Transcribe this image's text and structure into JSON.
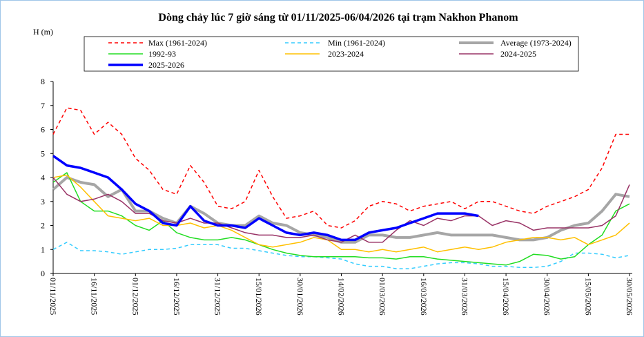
{
  "chart_data": {
    "type": "line",
    "title": "Dòng chảy lúc 7 giờ sáng từ 01/11/2025-06/04/2026 tại trạm Nakhon Phanom",
    "y_label": "H (m)",
    "ylim": [
      0,
      8
    ],
    "yticks": [
      0,
      1,
      2,
      3,
      4,
      5,
      6,
      7,
      8
    ],
    "xlim": [
      "01/11/2025",
      "31/05/2026"
    ],
    "xticks": [
      "01/11/2025",
      "16/11/2025",
      "01/12/2025",
      "16/12/2025",
      "31/12/2025",
      "15/01/2026",
      "30/01/2026",
      "14/02/2026",
      "01/03/2026",
      "16/03/2026",
      "31/03/2026",
      "15/04/2026",
      "30/04/2026",
      "15/05/2026",
      "30/05/2026"
    ],
    "grid": false,
    "x": [
      "01/11/2025",
      "06/11/2025",
      "11/11/2025",
      "16/11/2025",
      "21/11/2025",
      "26/11/2025",
      "01/12/2025",
      "06/12/2025",
      "11/12/2025",
      "16/12/2025",
      "21/12/2025",
      "26/12/2025",
      "31/12/2025",
      "05/01/2026",
      "10/01/2026",
      "15/01/2026",
      "20/01/2026",
      "25/01/2026",
      "30/01/2026",
      "04/02/2026",
      "09/02/2026",
      "14/02/2026",
      "19/02/2026",
      "24/02/2026",
      "01/03/2026",
      "06/03/2026",
      "11/03/2026",
      "16/03/2026",
      "21/03/2026",
      "26/03/2026",
      "31/03/2026",
      "05/04/2026",
      "10/04/2026",
      "15/04/2026",
      "20/04/2026",
      "25/04/2026",
      "30/04/2026",
      "05/05/2026",
      "10/05/2026",
      "15/05/2026",
      "20/05/2026",
      "25/05/2026",
      "30/05/2026"
    ],
    "series": [
      {
        "name": "Max (1961-2024)",
        "color": "#ff0000",
        "dash": true,
        "width": 1.5,
        "values": [
          5.8,
          6.9,
          6.8,
          5.8,
          6.3,
          5.8,
          4.8,
          4.3,
          3.5,
          3.3,
          4.5,
          3.8,
          2.8,
          2.7,
          3.0,
          4.3,
          3.2,
          2.3,
          2.4,
          2.6,
          2.0,
          1.9,
          2.2,
          2.8,
          3.0,
          2.9,
          2.6,
          2.8,
          2.9,
          3.0,
          2.7,
          3.0,
          3.0,
          2.8,
          2.6,
          2.5,
          2.8,
          3.0,
          3.2,
          3.5,
          4.4,
          5.8,
          5.8
        ]
      },
      {
        "name": "Min (1961-2024)",
        "color": "#33ccff",
        "dash": true,
        "width": 1.5,
        "values": [
          1.0,
          1.3,
          0.95,
          0.95,
          0.9,
          0.8,
          0.9,
          1.0,
          1.0,
          1.05,
          1.2,
          1.2,
          1.2,
          1.05,
          1.05,
          0.95,
          0.85,
          0.75,
          0.7,
          0.7,
          0.65,
          0.6,
          0.4,
          0.3,
          0.3,
          0.2,
          0.2,
          0.3,
          0.4,
          0.45,
          0.45,
          0.4,
          0.3,
          0.3,
          0.25,
          0.25,
          0.3,
          0.5,
          0.85,
          0.85,
          0.8,
          0.65,
          0.75
        ]
      },
      {
        "name": "Average (1973-2024)",
        "color": "#a6a6a6",
        "dash": false,
        "width": 4,
        "values": [
          3.5,
          4.0,
          3.8,
          3.7,
          3.2,
          3.5,
          2.6,
          2.6,
          2.3,
          2.1,
          2.8,
          2.5,
          2.1,
          2.0,
          2.0,
          2.4,
          2.1,
          2.0,
          1.7,
          1.6,
          1.5,
          1.3,
          1.3,
          1.6,
          1.6,
          1.5,
          1.5,
          1.6,
          1.7,
          1.6,
          1.6,
          1.6,
          1.6,
          1.5,
          1.4,
          1.4,
          1.5,
          1.8,
          2.0,
          2.1,
          2.6,
          3.3,
          3.2
        ]
      },
      {
        "name": "1992-93",
        "color": "#22dd22",
        "dash": false,
        "width": 1.5,
        "values": [
          3.8,
          4.2,
          3.0,
          2.6,
          2.6,
          2.4,
          2.0,
          1.8,
          2.2,
          1.7,
          1.5,
          1.4,
          1.4,
          1.5,
          1.4,
          1.2,
          1.0,
          0.85,
          0.75,
          0.7,
          0.7,
          0.7,
          0.7,
          0.65,
          0.65,
          0.6,
          0.7,
          0.7,
          0.6,
          0.55,
          0.5,
          0.45,
          0.4,
          0.35,
          0.5,
          0.8,
          0.75,
          0.6,
          0.7,
          1.2,
          1.6,
          2.6,
          2.9
        ]
      },
      {
        "name": "2023-2024",
        "color": "#ffc000",
        "dash": false,
        "width": 1.5,
        "values": [
          4.0,
          4.1,
          3.6,
          3.0,
          2.4,
          2.3,
          2.2,
          2.3,
          2.0,
          2.0,
          2.1,
          1.9,
          2.0,
          1.8,
          1.5,
          1.2,
          1.1,
          1.2,
          1.3,
          1.5,
          1.4,
          1.0,
          1.0,
          0.9,
          1.0,
          0.9,
          1.0,
          1.1,
          0.9,
          1.0,
          1.1,
          1.0,
          1.1,
          1.3,
          1.4,
          1.5,
          1.5,
          1.4,
          1.5,
          1.2,
          1.4,
          1.6,
          2.1
        ]
      },
      {
        "name": "2024-2025",
        "color": "#993366",
        "dash": false,
        "width": 1.5,
        "values": [
          4.0,
          3.3,
          3.0,
          3.1,
          3.3,
          3.0,
          2.5,
          2.5,
          2.2,
          2.1,
          2.3,
          2.1,
          2.1,
          1.9,
          1.7,
          1.6,
          1.6,
          1.5,
          1.5,
          1.6,
          1.4,
          1.3,
          1.6,
          1.3,
          1.3,
          1.8,
          2.2,
          2.0,
          2.3,
          2.2,
          2.4,
          2.4,
          2.0,
          2.2,
          2.1,
          1.8,
          1.9,
          1.9,
          1.9,
          1.9,
          2.0,
          2.4,
          3.7
        ]
      },
      {
        "name": "2025-2026",
        "color": "#0000ff",
        "dash": false,
        "width": 3.5,
        "values": [
          4.9,
          4.5,
          4.4,
          4.2,
          4.0,
          3.5,
          2.9,
          2.6,
          2.1,
          2.0,
          2.8,
          2.2,
          2.0,
          2.0,
          1.9,
          2.3,
          2.0,
          1.7,
          1.6,
          1.7,
          1.6,
          1.4,
          1.4,
          1.7,
          1.8,
          1.9,
          2.1,
          2.3,
          2.5,
          2.5,
          2.5,
          2.4,
          null,
          null,
          null,
          null,
          null,
          null,
          null,
          null,
          null,
          null,
          null
        ]
      }
    ]
  }
}
